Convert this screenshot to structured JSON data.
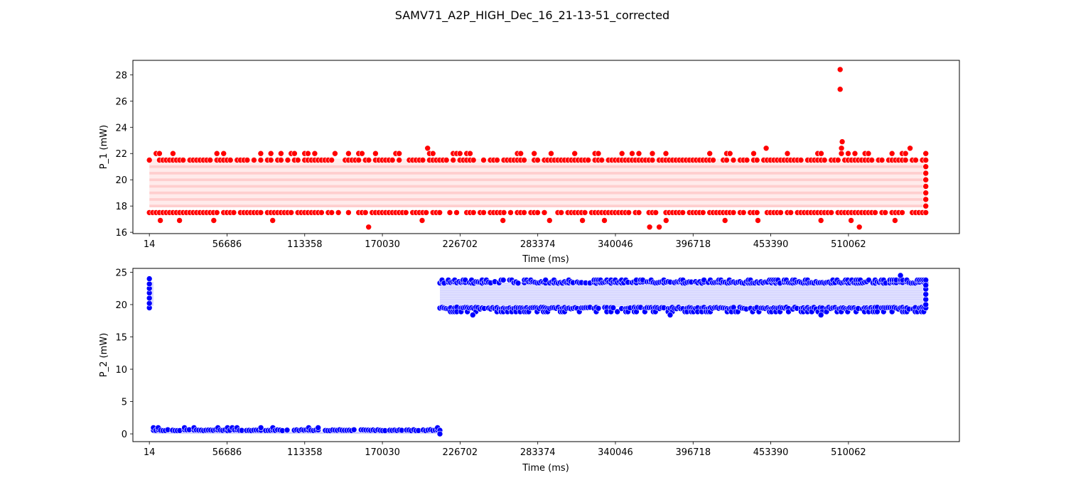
{
  "figure": {
    "title": "SAMV71_A2P_HIGH_Dec_16_21-13-51_corrected"
  },
  "chart_data": [
    {
      "type": "scatter",
      "title": "",
      "xlabel": "Time (ms)",
      "ylabel": "P_1 (mW)",
      "xlim": [
        -12000,
        591000
      ],
      "ylim": [
        15.9,
        29.1
      ],
      "x_ticks": [
        14,
        56686,
        113358,
        170030,
        226702,
        283374,
        340046,
        396718,
        453390,
        510062
      ],
      "x_tick_labels": [
        "14",
        "56686",
        "113358",
        "170030",
        "226702",
        "283374",
        "340046",
        "396718",
        "453390",
        "510062"
      ],
      "y_ticks": [
        16,
        18,
        20,
        22,
        24,
        26,
        28
      ],
      "y_tick_labels": [
        "16",
        "18",
        "20",
        "22",
        "24",
        "26",
        "28"
      ],
      "grid": false,
      "color": "#ff0000",
      "series": [
        {
          "x_range": [
            14,
            566500
          ],
          "typical_band": [
            17.5,
            22.0
          ],
          "levels": [
            17.5,
            18.0,
            18.5,
            19.0,
            19.5,
            20.0,
            20.5,
            21.0,
            21.5,
            22.0
          ],
          "outliers": [
            {
              "x": 504000,
              "y": 28.4
            },
            {
              "x": 504000,
              "y": 26.9
            },
            {
              "x": 505500,
              "y": 22.9
            },
            {
              "x": 505000,
              "y": 22.4
            },
            {
              "x": 203000,
              "y": 22.4
            },
            {
              "x": 450000,
              "y": 22.4
            },
            {
              "x": 555000,
              "y": 22.4
            },
            {
              "x": 160000,
              "y": 16.4
            },
            {
              "x": 365000,
              "y": 16.4
            },
            {
              "x": 372000,
              "y": 16.4
            },
            {
              "x": 518000,
              "y": 16.4
            },
            {
              "x": 8000,
              "y": 16.9
            },
            {
              "x": 22000,
              "y": 16.9
            },
            {
              "x": 47000,
              "y": 16.9
            },
            {
              "x": 90000,
              "y": 16.9
            },
            {
              "x": 199000,
              "y": 16.9
            },
            {
              "x": 258000,
              "y": 16.9
            },
            {
              "x": 292000,
              "y": 16.9
            },
            {
              "x": 316000,
              "y": 16.9
            },
            {
              "x": 332000,
              "y": 16.9
            },
            {
              "x": 377000,
              "y": 16.9
            },
            {
              "x": 420000,
              "y": 16.9
            },
            {
              "x": 444000,
              "y": 16.9
            },
            {
              "x": 490000,
              "y": 16.9
            },
            {
              "x": 512000,
              "y": 16.9
            },
            {
              "x": 544000,
              "y": 16.9
            }
          ]
        }
      ]
    },
    {
      "type": "scatter",
      "title": "",
      "xlabel": "Time (ms)",
      "ylabel": "P_2 (mW)",
      "xlim": [
        -12000,
        591000
      ],
      "ylim": [
        -1.2,
        25.6
      ],
      "x_ticks": [
        14,
        56686,
        113358,
        170030,
        226702,
        283374,
        340046,
        396718,
        453390,
        510062
      ],
      "x_tick_labels": [
        "14",
        "56686",
        "113358",
        "170030",
        "226702",
        "283374",
        "340046",
        "396718",
        "453390",
        "510062"
      ],
      "y_ticks": [
        0,
        5,
        10,
        15,
        20,
        25
      ],
      "y_tick_labels": [
        "0",
        "5",
        "10",
        "15",
        "20",
        "25"
      ],
      "grid": false,
      "color": "#0000ff",
      "series": [
        {
          "segments": [
            {
              "x_range": [
                14,
                3000
              ],
              "y_range": [
                19.3,
                24.0
              ]
            },
            {
              "x_range": [
                3000,
                212000
              ],
              "y_range": [
                0.0,
                1.0
              ]
            },
            {
              "x_range": [
                212000,
                566500
              ],
              "y_range": [
                18.4,
                24.5
              ]
            }
          ],
          "outliers": [
            {
              "x": 212000,
              "y": 0.0
            },
            {
              "x": 548000,
              "y": 24.5
            },
            {
              "x": 380000,
              "y": 18.4
            },
            {
              "x": 490000,
              "y": 18.4
            },
            {
              "x": 236000,
              "y": 18.4
            }
          ]
        }
      ]
    }
  ]
}
